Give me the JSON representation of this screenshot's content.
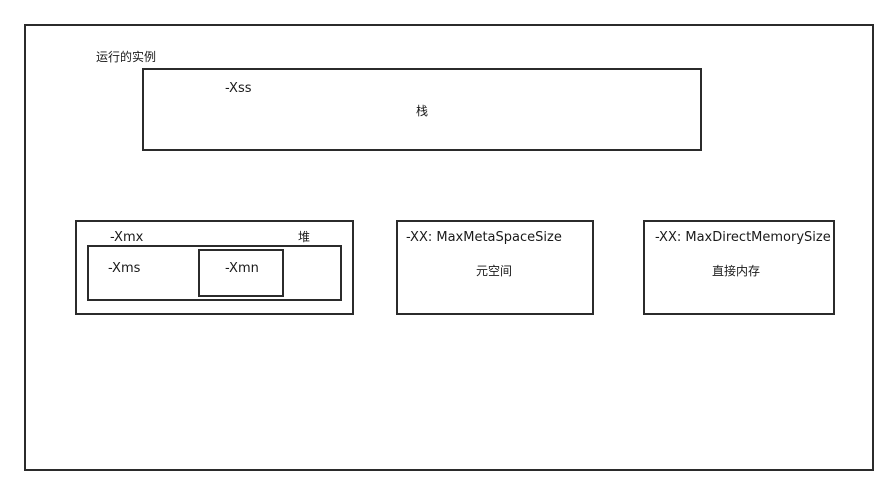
{
  "runtime_instance": {
    "label": "运行的实例"
  },
  "stack": {
    "param": "-Xss",
    "label": "栈"
  },
  "heap": {
    "max_param": "-Xmx",
    "label": "堆",
    "initial_param": "-Xms",
    "young_param": "-Xmn"
  },
  "metaspace": {
    "param": "-XX: MaxMetaSpaceSize",
    "label": "元空间"
  },
  "direct_memory": {
    "param": "-XX: MaxDirectMemorySize",
    "label": "直接内存"
  }
}
